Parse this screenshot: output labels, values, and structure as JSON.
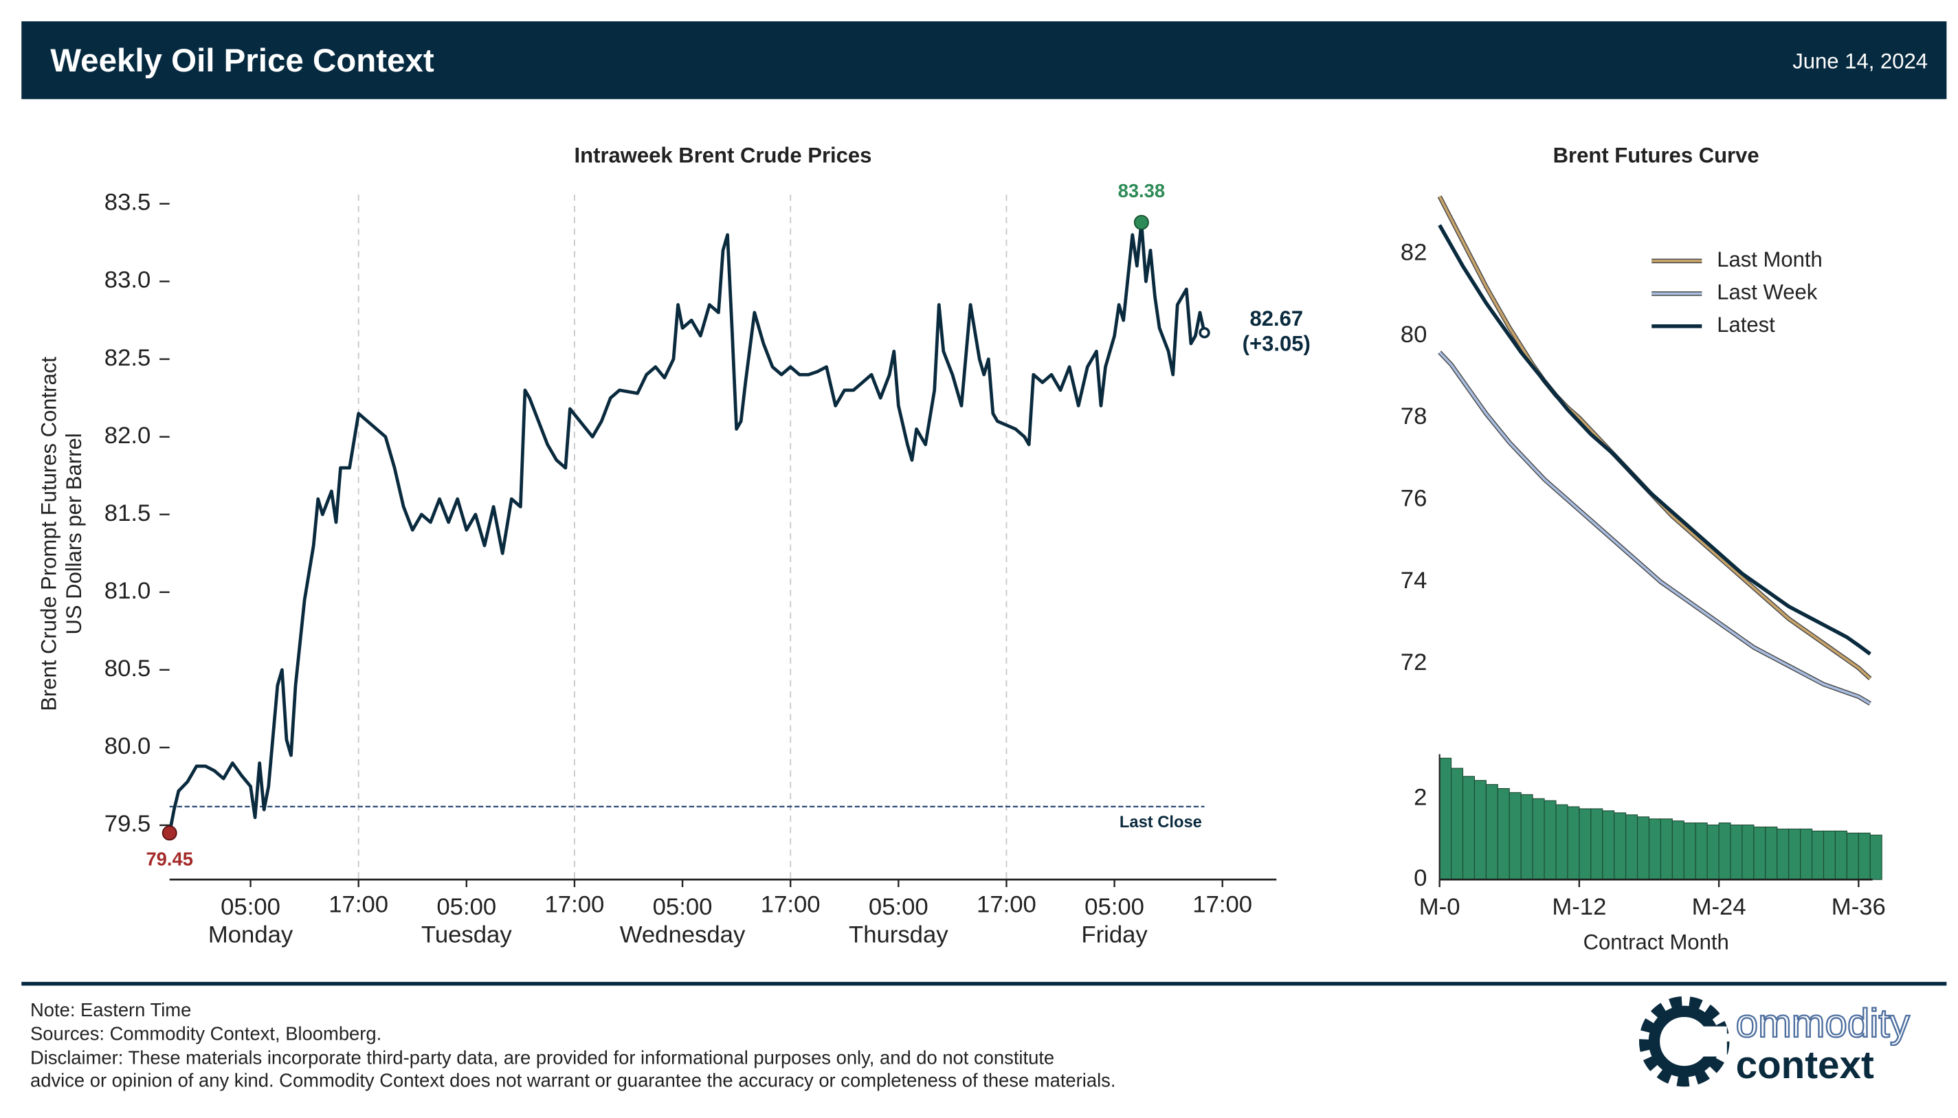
{
  "header": {
    "title": "Weekly Oil Price Context",
    "date": "June 14, 2024"
  },
  "chart_data": [
    {
      "type": "line",
      "title": "Intraweek Brent Crude Prices",
      "ylabel": [
        "Brent Crude Prompt Futures Contract",
        "US Dollars per Barrel"
      ],
      "color": "#0a2a3e",
      "max_color": "#2e8b57",
      "min_color": "#a52a2a",
      "x": [
        -4,
        -3.5,
        -3,
        -2,
        -1,
        0,
        1,
        2,
        3,
        4,
        5,
        5.5,
        6,
        6.5,
        7,
        8,
        8.5,
        9,
        9.5,
        10,
        11,
        12,
        12.5,
        13,
        14,
        14.5,
        15,
        16,
        17,
        20,
        21,
        22,
        23,
        24,
        25,
        26,
        27,
        28,
        29,
        30,
        31,
        32,
        33,
        34,
        35,
        35.5,
        36,
        37,
        38,
        39,
        40,
        40.5,
        43,
        44,
        45,
        46,
        48,
        49,
        50,
        51,
        52,
        52.5,
        53,
        54,
        55,
        56,
        57,
        57.5,
        58,
        58.5,
        59,
        59.5,
        60,
        61,
        62,
        63,
        64,
        65,
        66,
        67,
        68,
        69,
        70,
        71,
        72,
        73,
        74,
        75,
        76,
        76.5,
        77,
        78,
        78.5,
        79,
        80,
        81,
        81.5,
        82,
        83,
        84,
        85,
        86,
        86.5,
        87,
        87.5,
        88,
        90,
        91,
        91.5,
        92,
        93,
        94,
        95,
        96,
        97,
        98,
        99,
        99.5,
        100,
        101,
        101.5,
        102,
        103,
        103.5,
        104,
        104.5,
        105,
        105.5,
        106,
        107,
        107.5,
        108,
        109,
        109.5,
        110,
        110.5,
        111
      ],
      "values": [
        79.45,
        79.6,
        79.72,
        79.78,
        79.88,
        79.88,
        79.85,
        79.8,
        79.9,
        79.82,
        79.75,
        79.55,
        79.9,
        79.6,
        79.75,
        80.4,
        80.5,
        80.05,
        79.95,
        80.4,
        80.95,
        81.3,
        81.6,
        81.5,
        81.65,
        81.45,
        81.8,
        81.8,
        82.15,
        82.0,
        81.8,
        81.55,
        81.4,
        81.5,
        81.45,
        81.6,
        81.45,
        81.6,
        81.4,
        81.5,
        81.3,
        81.55,
        81.25,
        81.6,
        81.55,
        82.3,
        82.25,
        82.1,
        81.95,
        81.85,
        81.8,
        82.18,
        82.0,
        82.1,
        82.25,
        82.3,
        82.28,
        82.4,
        82.45,
        82.38,
        82.5,
        82.85,
        82.7,
        82.75,
        82.65,
        82.85,
        82.8,
        83.2,
        83.3,
        82.7,
        82.05,
        82.1,
        82.35,
        82.8,
        82.6,
        82.45,
        82.4,
        82.45,
        82.4,
        82.4,
        82.42,
        82.45,
        82.2,
        82.3,
        82.3,
        82.35,
        82.4,
        82.25,
        82.4,
        82.55,
        82.2,
        81.95,
        81.85,
        82.05,
        81.95,
        82.3,
        82.85,
        82.55,
        82.4,
        82.2,
        82.85,
        82.5,
        82.4,
        82.5,
        82.15,
        82.1,
        82.05,
        82.0,
        81.95,
        82.4,
        82.35,
        82.4,
        82.3,
        82.45,
        82.2,
        82.45,
        82.55,
        82.2,
        82.45,
        82.65,
        82.85,
        82.75,
        83.3,
        83.1,
        83.38,
        83.0,
        83.2,
        82.9,
        82.7,
        82.55,
        82.4,
        82.85,
        82.95,
        82.6,
        82.65,
        82.8,
        82.67
      ],
      "change": 3.05,
      "change_label": "(+3.05)",
      "last_close": {
        "value": 79.62,
        "label": "Last Close"
      },
      "xlim": [
        -4,
        119
      ],
      "xticks": [
        {
          "value": 5,
          "label": "05:00"
        },
        {
          "value": 17,
          "label": "17:00"
        },
        {
          "value": 29,
          "label": "05:00"
        },
        {
          "value": 41,
          "label": "17:00"
        },
        {
          "value": 53,
          "label": "05:00"
        },
        {
          "value": 65,
          "label": "17:00"
        },
        {
          "value": 77,
          "label": "05:00"
        },
        {
          "value": 89,
          "label": "17:00"
        },
        {
          "value": 101,
          "label": "05:00"
        },
        {
          "value": 113,
          "label": "17:00"
        }
      ],
      "days": [
        "Monday",
        "Tuesday",
        "Wednesday",
        "Thursday",
        "Friday"
      ],
      "ylim": [
        79.15,
        83.6
      ],
      "yticks": [
        79.5,
        {
          "value": 80,
          "label": "80.0"
        },
        80.5,
        {
          "value": 81,
          "label": "81.0"
        },
        81.5,
        {
          "value": 82,
          "label": "82.0"
        },
        82.5,
        {
          "value": 83,
          "label": "83.0"
        },
        83.5
      ],
      "grid": true
    },
    {
      "type": "line",
      "title": "Brent Futures Curve",
      "x": [
        0,
        1,
        2,
        3,
        4,
        5,
        6,
        7,
        8,
        9,
        10,
        11,
        12,
        13,
        14,
        15,
        16,
        17,
        18,
        19,
        20,
        21,
        22,
        23,
        24,
        25,
        26,
        27,
        28,
        29,
        30,
        31,
        32,
        33,
        34,
        35,
        36,
        37
      ],
      "series": [
        {
          "name": "Last Month",
          "color": "#c8a46a",
          "values": [
            83.4,
            82.85,
            82.3,
            81.75,
            81.2,
            80.7,
            80.2,
            79.75,
            79.3,
            78.9,
            78.55,
            78.25,
            78.0,
            77.7,
            77.4,
            77.1,
            76.8,
            76.5,
            76.2,
            75.9,
            75.6,
            75.35,
            75.1,
            74.85,
            74.6,
            74.35,
            74.1,
            73.85,
            73.6,
            73.35,
            73.1,
            72.9,
            72.7,
            72.5,
            72.3,
            72.1,
            71.9,
            71.64
          ]
        },
        {
          "name": "Last Week",
          "color": "#a9bde0",
          "values": [
            79.6,
            79.3,
            78.9,
            78.5,
            78.1,
            77.75,
            77.4,
            77.1,
            76.8,
            76.5,
            76.25,
            76.0,
            75.75,
            75.5,
            75.25,
            75.0,
            74.75,
            74.5,
            74.25,
            74.0,
            73.8,
            73.6,
            73.4,
            73.2,
            73.0,
            72.8,
            72.6,
            72.4,
            72.25,
            72.1,
            71.95,
            71.8,
            71.65,
            71.5,
            71.4,
            71.3,
            71.2,
            71.03
          ]
        },
        {
          "name": "Latest",
          "color": "#0a2a3e",
          "values": [
            82.7,
            82.2,
            81.7,
            81.25,
            80.8,
            80.4,
            80.0,
            79.6,
            79.25,
            78.9,
            78.55,
            78.2,
            77.9,
            77.6,
            77.35,
            77.1,
            76.8,
            76.5,
            76.2,
            75.95,
            75.7,
            75.45,
            75.2,
            74.95,
            74.7,
            74.45,
            74.2,
            74.0,
            73.8,
            73.6,
            73.4,
            73.25,
            73.1,
            72.95,
            72.8,
            72.65,
            72.45,
            72.24
          ]
        }
      ],
      "xlim": [
        0,
        37.2
      ],
      "ylim": [
        70.9,
        83.6
      ],
      "yticks": [
        72,
        74,
        76,
        78,
        80,
        82
      ],
      "legend": "upper right"
    },
    {
      "type": "bar",
      "color": "#2e8b62",
      "x": [
        0,
        1,
        2,
        3,
        4,
        5,
        6,
        7,
        8,
        9,
        10,
        11,
        12,
        13,
        14,
        15,
        16,
        17,
        18,
        19,
        20,
        21,
        22,
        23,
        24,
        25,
        26,
        27,
        28,
        29,
        30,
        31,
        32,
        33,
        34,
        35,
        36,
        37
      ],
      "values": [
        3.0,
        2.75,
        2.55,
        2.45,
        2.35,
        2.25,
        2.15,
        2.1,
        2.0,
        1.95,
        1.85,
        1.8,
        1.75,
        1.75,
        1.7,
        1.65,
        1.6,
        1.55,
        1.5,
        1.5,
        1.45,
        1.4,
        1.4,
        1.35,
        1.4,
        1.35,
        1.35,
        1.3,
        1.3,
        1.25,
        1.25,
        1.25,
        1.2,
        1.2,
        1.2,
        1.15,
        1.15,
        1.1
      ],
      "xlim": [
        0,
        37.2
      ],
      "ylim": [
        0,
        3.1
      ],
      "yticks": [
        0,
        2
      ],
      "xticks": [
        {
          "value": 0,
          "label": "M-0"
        },
        {
          "value": 12,
          "label": "M-12"
        },
        {
          "value": 24,
          "label": "M-24"
        },
        {
          "value": 36,
          "label": "M-36"
        }
      ],
      "xlabel": "Contract Month"
    }
  ],
  "footer": {
    "notes": [
      "Note: Eastern Time",
      "Sources: Commodity Context, Bloomberg.",
      "Disclaimer: These materials incorporate third-party data, are provided for informational purposes only, and do not constitute",
      "advice or opinion of any kind. Commodity Context does not warrant or guarantee the accuracy or completeness of these materials."
    ]
  },
  "logo": {
    "line1": "ommodity",
    "line2": "context"
  }
}
